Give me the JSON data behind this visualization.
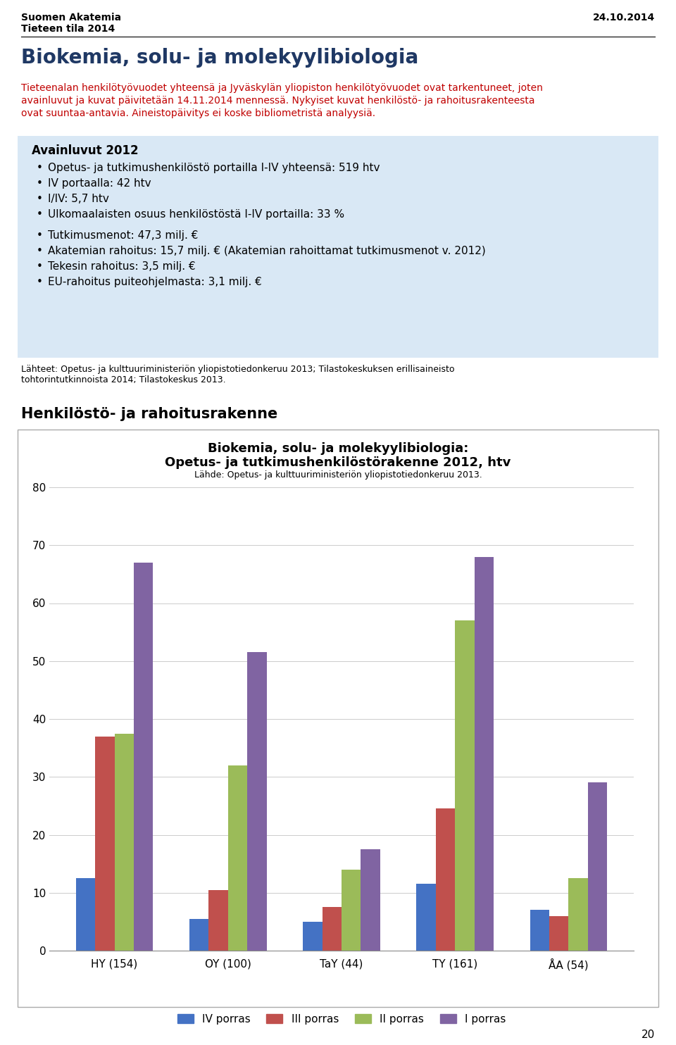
{
  "page_header_left_1": "Suomen Akatemia",
  "page_header_left_2": "Tieteen tila 2014",
  "page_header_right": "24.10.2014",
  "main_title": "Biokemia, solu- ja molekyylibiologia",
  "notice_lines": [
    "Tieteenalan henkilötyövuodet yhteensä ja Jyväskylän yliopiston henkilötyövuodet ovat tarkentuneet, joten",
    "avainluvut ja kuvat päivitetään 14.11.2014 mennessä. Nykyiset kuvat henkilöstö- ja rahoitusrakenteesta",
    "ovat suuntaa-antavia. Aineistopäivitys ei koske bibliometristä analyysiä."
  ],
  "box_title": "Avainluvut 2012",
  "box_bullets": [
    "Opetus- ja tutkimushenkilöstö portailla I-IV yhteensä: 519 htv",
    "IV portaalla: 42 htv",
    "I/IV: 5,7 htv",
    "Ulkomaalaisten osuus henkilöstöstä I-IV portailla: 33 %",
    "",
    "Tutkimusmenot: 47,3 milj. €",
    "Akatemian rahoitus: 15,7 milj. € (Akatemian rahoittamat tutkimusmenot v. 2012)",
    "Tekesin rahoitus: 3,5 milj. €",
    "EU-rahoitus puiteohjelmasta: 3,1 milj. €"
  ],
  "sources_lines": [
    "Lähteet: Opetus- ja kulttuuriministeriön yliopistotiedonkeruu 2013; Tilastokeskuksen erillisaineisto",
    "tohtorintutkinnoista 2014; Tilastokeskus 2013."
  ],
  "section_title": "Henkilöstö- ja rahoitusrakenne",
  "chart_title_line1": "Biokemia, solu- ja molekyylibiologia:",
  "chart_title_line2": "Opetus- ja tutkimushenkilöstörakenne 2012, htv",
  "chart_subtitle": "Lähde: Opetus- ja kulttuuriministeriön yliopistotiedonkeruu 2013.",
  "categories": [
    "HY (154)",
    "OY (100)",
    "TaY (44)",
    "TY (161)",
    "ÅA (54)"
  ],
  "series": {
    "IV porras": [
      12.5,
      5.5,
      5.0,
      11.5,
      7.0
    ],
    "III porras": [
      37.0,
      10.5,
      7.5,
      24.5,
      6.0
    ],
    "II porras": [
      37.5,
      32.0,
      14.0,
      57.0,
      12.5
    ],
    "I porras": [
      67.0,
      51.5,
      17.5,
      68.0,
      29.0
    ]
  },
  "bar_colors": {
    "IV porras": "#4472C4",
    "III porras": "#C0504D",
    "II porras": "#9BBB59",
    "I porras": "#8064A2"
  },
  "ylim": [
    0,
    80
  ],
  "yticks": [
    0,
    10,
    20,
    30,
    40,
    50,
    60,
    70,
    80
  ],
  "box_bg_color": "#D9E8F5",
  "notice_color": "#C00000",
  "main_title_color": "#1F3864",
  "page_number": "20"
}
